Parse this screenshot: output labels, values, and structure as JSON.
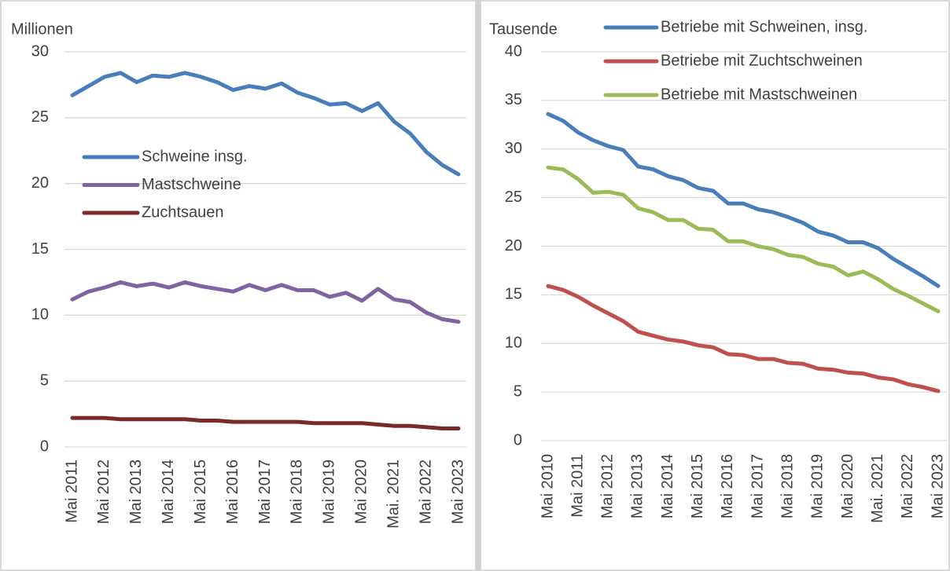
{
  "chart_data": [
    {
      "type": "line",
      "y_label": "Millionen",
      "ylim": [
        0,
        30
      ],
      "yticks": [
        0,
        5,
        10,
        15,
        20,
        25,
        30
      ],
      "grid": true,
      "legend_position": "center-left",
      "categories": [
        "Mai 2011",
        null,
        "Mai 2012",
        null,
        "Mai 2013",
        null,
        "Mai 2014",
        null,
        "Mai 2015",
        null,
        "Mai 2016",
        null,
        "Mai 2017",
        null,
        "Mai 2018",
        null,
        "Mai 2019",
        null,
        "Mai 2020",
        null,
        "Mai. 2021",
        null,
        "Mai 2022",
        null,
        "Mai 2023"
      ],
      "series": [
        {
          "name": "Schweine insg.",
          "color": "#4a7ebb",
          "values": [
            26.7,
            27.4,
            28.1,
            28.4,
            27.7,
            28.2,
            28.1,
            28.4,
            28.1,
            27.7,
            27.1,
            27.4,
            27.2,
            27.6,
            26.9,
            26.5,
            26.0,
            26.1,
            25.5,
            26.1,
            24.7,
            23.8,
            22.4,
            21.4,
            20.7
          ]
        },
        {
          "name": "Mastschweine",
          "color": "#8064a2",
          "values": [
            11.2,
            11.8,
            12.1,
            12.5,
            12.2,
            12.4,
            12.1,
            12.5,
            12.2,
            12.0,
            11.8,
            12.3,
            11.9,
            12.3,
            11.9,
            11.9,
            11.4,
            11.7,
            11.1,
            12.0,
            11.2,
            11.0,
            10.2,
            9.7,
            9.5
          ]
        },
        {
          "name": "Zuchtsauen",
          "color": "#772c2a",
          "values": [
            2.2,
            2.2,
            2.2,
            2.1,
            2.1,
            2.1,
            2.1,
            2.1,
            2.0,
            2.0,
            1.9,
            1.9,
            1.9,
            1.9,
            1.9,
            1.8,
            1.8,
            1.8,
            1.8,
            1.7,
            1.6,
            1.6,
            1.5,
            1.4,
            1.4
          ]
        }
      ]
    },
    {
      "type": "line",
      "y_label": "Tausende",
      "ylim": [
        0,
        40
      ],
      "yticks": [
        0,
        5,
        10,
        15,
        20,
        25,
        30,
        35,
        40
      ],
      "grid": true,
      "legend_position": "top-right",
      "categories": [
        "Mai 2010",
        null,
        "Mai 2011",
        null,
        "Mai 2012",
        null,
        "Mai 2013",
        null,
        "Mai 2014",
        null,
        "Mai 2015",
        null,
        "Mai 2016",
        null,
        "Mai 2017",
        null,
        "Mai 2018",
        null,
        "Mai 2019",
        null,
        "Mai 2020",
        null,
        "Mai. 2021",
        null,
        "Mai 2022",
        null,
        "Mai 2023"
      ],
      "series": [
        {
          "name": "Betriebe mit Schweinen, insg.",
          "color": "#4a7ebb",
          "values": [
            33.6,
            32.9,
            31.7,
            30.9,
            30.3,
            29.9,
            28.2,
            27.9,
            27.2,
            26.8,
            26.0,
            25.7,
            24.4,
            24.4,
            23.8,
            23.5,
            23.0,
            22.4,
            21.5,
            21.1,
            20.4,
            20.4,
            19.8,
            18.7,
            17.8,
            16.9,
            15.9
          ]
        },
        {
          "name": "Betriebe mit Zuchtschweinen",
          "color": "#c0504d",
          "values": [
            15.9,
            15.5,
            14.8,
            13.9,
            13.1,
            12.3,
            11.2,
            10.8,
            10.4,
            10.2,
            9.8,
            9.6,
            8.9,
            8.8,
            8.4,
            8.4,
            8.0,
            7.9,
            7.4,
            7.3,
            7.0,
            6.9,
            6.5,
            6.3,
            5.8,
            5.5,
            5.1
          ]
        },
        {
          "name": "Betriebe mit Mastschweinen",
          "color": "#9bbb59",
          "values": [
            28.1,
            27.9,
            26.9,
            25.5,
            25.6,
            25.3,
            23.9,
            23.5,
            22.7,
            22.7,
            21.8,
            21.7,
            20.5,
            20.5,
            20.0,
            19.7,
            19.1,
            18.9,
            18.2,
            17.9,
            17.0,
            17.4,
            16.6,
            15.6,
            14.9,
            14.1,
            13.3
          ]
        }
      ]
    }
  ]
}
